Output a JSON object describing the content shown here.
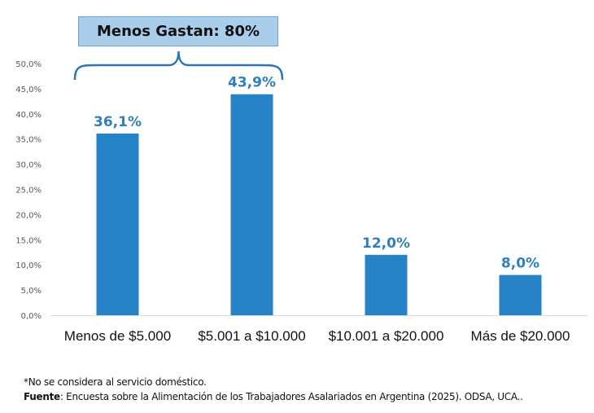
{
  "chart_data": {
    "type": "bar",
    "categories": [
      "Menos de $5.000",
      "$5.001 a $10.000",
      "$10.001 a $20.000",
      "Más de $20.000"
    ],
    "values": [
      36.1,
      43.9,
      12.0,
      8.0
    ],
    "data_labels": [
      "36,1%",
      "43,9%",
      "12,0%",
      "8,0%"
    ],
    "y_ticks": [
      "0,0%",
      "5,0%",
      "10,0%",
      "15,0%",
      "20,0%",
      "25,0%",
      "30,0%",
      "35,0%",
      "40,0%",
      "45,0%",
      "50,0%"
    ],
    "ylim": [
      0,
      50
    ],
    "grid": false,
    "bar_color": "#2683c6",
    "label_color": "#2e7fbf",
    "annotation": {
      "text": "Menos Gastan: 80%",
      "spans": [
        "Menos de $5.000",
        "$5.001 a $10.000"
      ],
      "fill": "#a9cdea"
    }
  },
  "footnotes": {
    "note": "*No se considera al servicio doméstico.",
    "source_label": "Fuente",
    "source_text": ": Encuesta sobre la Alimentación de los Trabajadores Asalariados en Argentina (2025). ODSA, UCA.."
  }
}
